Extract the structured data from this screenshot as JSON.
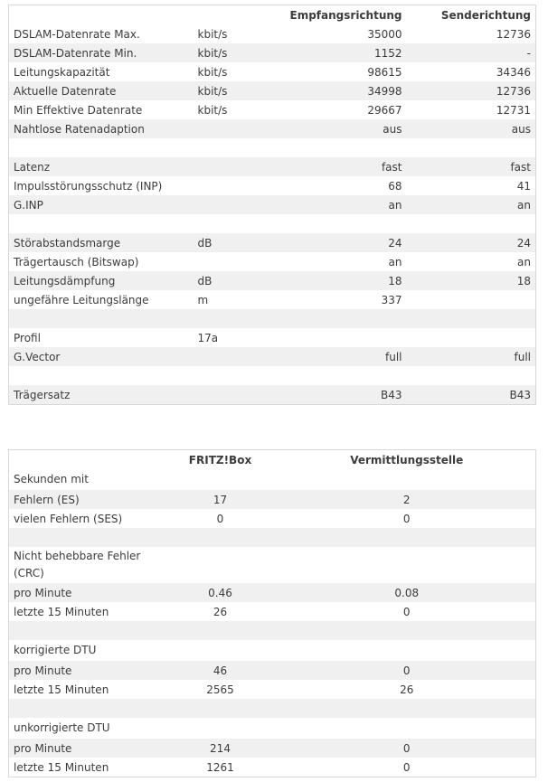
{
  "table1": {
    "columns": [
      "Empfangsrichtung",
      "Senderichtung"
    ],
    "groups": [
      [
        {
          "label": "DSLAM-Datenrate Max.",
          "unit": "kbit/s",
          "rx": 35000,
          "tx": 12736
        },
        {
          "label": "DSLAM-Datenrate Min.",
          "unit": "kbit/s",
          "rx": 1152,
          "tx": "-"
        },
        {
          "label": "Leitungskapazität",
          "unit": "kbit/s",
          "rx": 98615,
          "tx": 34346
        },
        {
          "label": "Aktuelle Datenrate",
          "unit": "kbit/s",
          "rx": 34998,
          "tx": 12736
        },
        {
          "label": "Min Effektive Datenrate",
          "unit": "kbit/s",
          "rx": 29667,
          "tx": 12731
        },
        {
          "label": "Nahtlose Ratenadaption",
          "rx": "aus",
          "tx": "aus"
        }
      ],
      [
        {
          "label": "Latenz",
          "rx": "fast",
          "tx": "fast"
        },
        {
          "label": "Impulsstörungsschutz (INP)",
          "rx": 68,
          "tx": 41
        },
        {
          "label": "G.INP",
          "rx": "an",
          "tx": "an"
        }
      ],
      [
        {
          "label": "Störabstandsmarge",
          "unit": "dB",
          "rx": 24,
          "tx": 24
        },
        {
          "label": "Trägertausch (Bitswap)",
          "rx": "an",
          "tx": "an"
        },
        {
          "label": "Leitungsdämpfung",
          "unit": "dB",
          "rx": 18,
          "tx": 18
        },
        {
          "label": "ungefähre Leitungslänge",
          "unit": "m",
          "rx": 337
        }
      ],
      [
        {
          "label": "Profil",
          "unit": "17a"
        },
        {
          "label": "G.Vector",
          "rx": "full",
          "tx": "full"
        }
      ],
      [
        {
          "label": "Trägersatz",
          "rx": "B43",
          "tx": "B43"
        }
      ]
    ]
  },
  "table2": {
    "columns": [
      "FRITZ!Box",
      "Vermittlungsstelle"
    ],
    "groups": [
      {
        "heading": "Sekunden mit",
        "rows": [
          {
            "label": "Fehlern (ES)",
            "values": [
              17,
              2
            ]
          },
          {
            "label": "vielen Fehlern (SES)",
            "values": [
              0,
              0
            ]
          }
        ]
      },
      {
        "heading": "Nicht behebbare Fehler (CRC)",
        "rows": [
          {
            "label": "pro Minute",
            "values": [
              0.46,
              0.08
            ]
          },
          {
            "label": "letzte 15 Minuten",
            "values": [
              26,
              0
            ]
          }
        ]
      },
      {
        "heading": "korrigierte DTU",
        "rows": [
          {
            "label": "pro Minute",
            "values": [
              46,
              0
            ]
          },
          {
            "label": "letzte 15 Minuten",
            "values": [
              2565,
              26
            ]
          }
        ]
      },
      {
        "heading": "unkorrigierte DTU",
        "rows": [
          {
            "label": "pro Minute",
            "values": [
              214,
              0
            ]
          },
          {
            "label": "letzte 15 Minuten",
            "values": [
              1261,
              0
            ]
          }
        ]
      }
    ]
  }
}
